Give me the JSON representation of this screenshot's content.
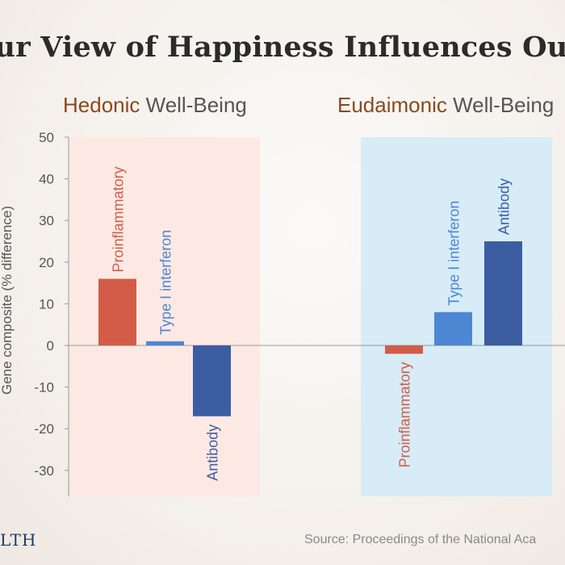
{
  "title": "our View of Happiness Influences Our",
  "source": "Source: Proceedings of the National  Aca",
  "logo": "LTH",
  "groups": [
    {
      "accent": "Hedonic",
      "rest": " Well-Being",
      "bg": "#fde9e4"
    },
    {
      "accent": "Eudaimonic",
      "rest": " Well-Being",
      "bg": "#d7ecf6"
    }
  ],
  "colors": {
    "Proinflammatory": "#d25c47",
    "Type I interferon": "#4d86d3",
    "Antibody": "#3d5da3",
    "accent": "#8a4a1e"
  },
  "chart_data": {
    "type": "bar",
    "ylabel": "Gene composite (% difference)",
    "ylim": [
      -35,
      50
    ],
    "yticks": [
      50,
      40,
      30,
      20,
      10,
      0,
      -10,
      -20,
      -30
    ],
    "groups": [
      {
        "name": "Hedonic Well-Being",
        "bars": [
          {
            "label": "Proinflammatory",
            "value": 16
          },
          {
            "label": "Type I interferon",
            "value": 1
          },
          {
            "label": "Antibody",
            "value": -17
          }
        ]
      },
      {
        "name": "Eudaimonic Well-Being",
        "bars": [
          {
            "label": "Proinflammatory",
            "value": -2
          },
          {
            "label": "Type I interferon",
            "value": 8
          },
          {
            "label": "Antibody",
            "value": 25
          }
        ]
      }
    ]
  }
}
